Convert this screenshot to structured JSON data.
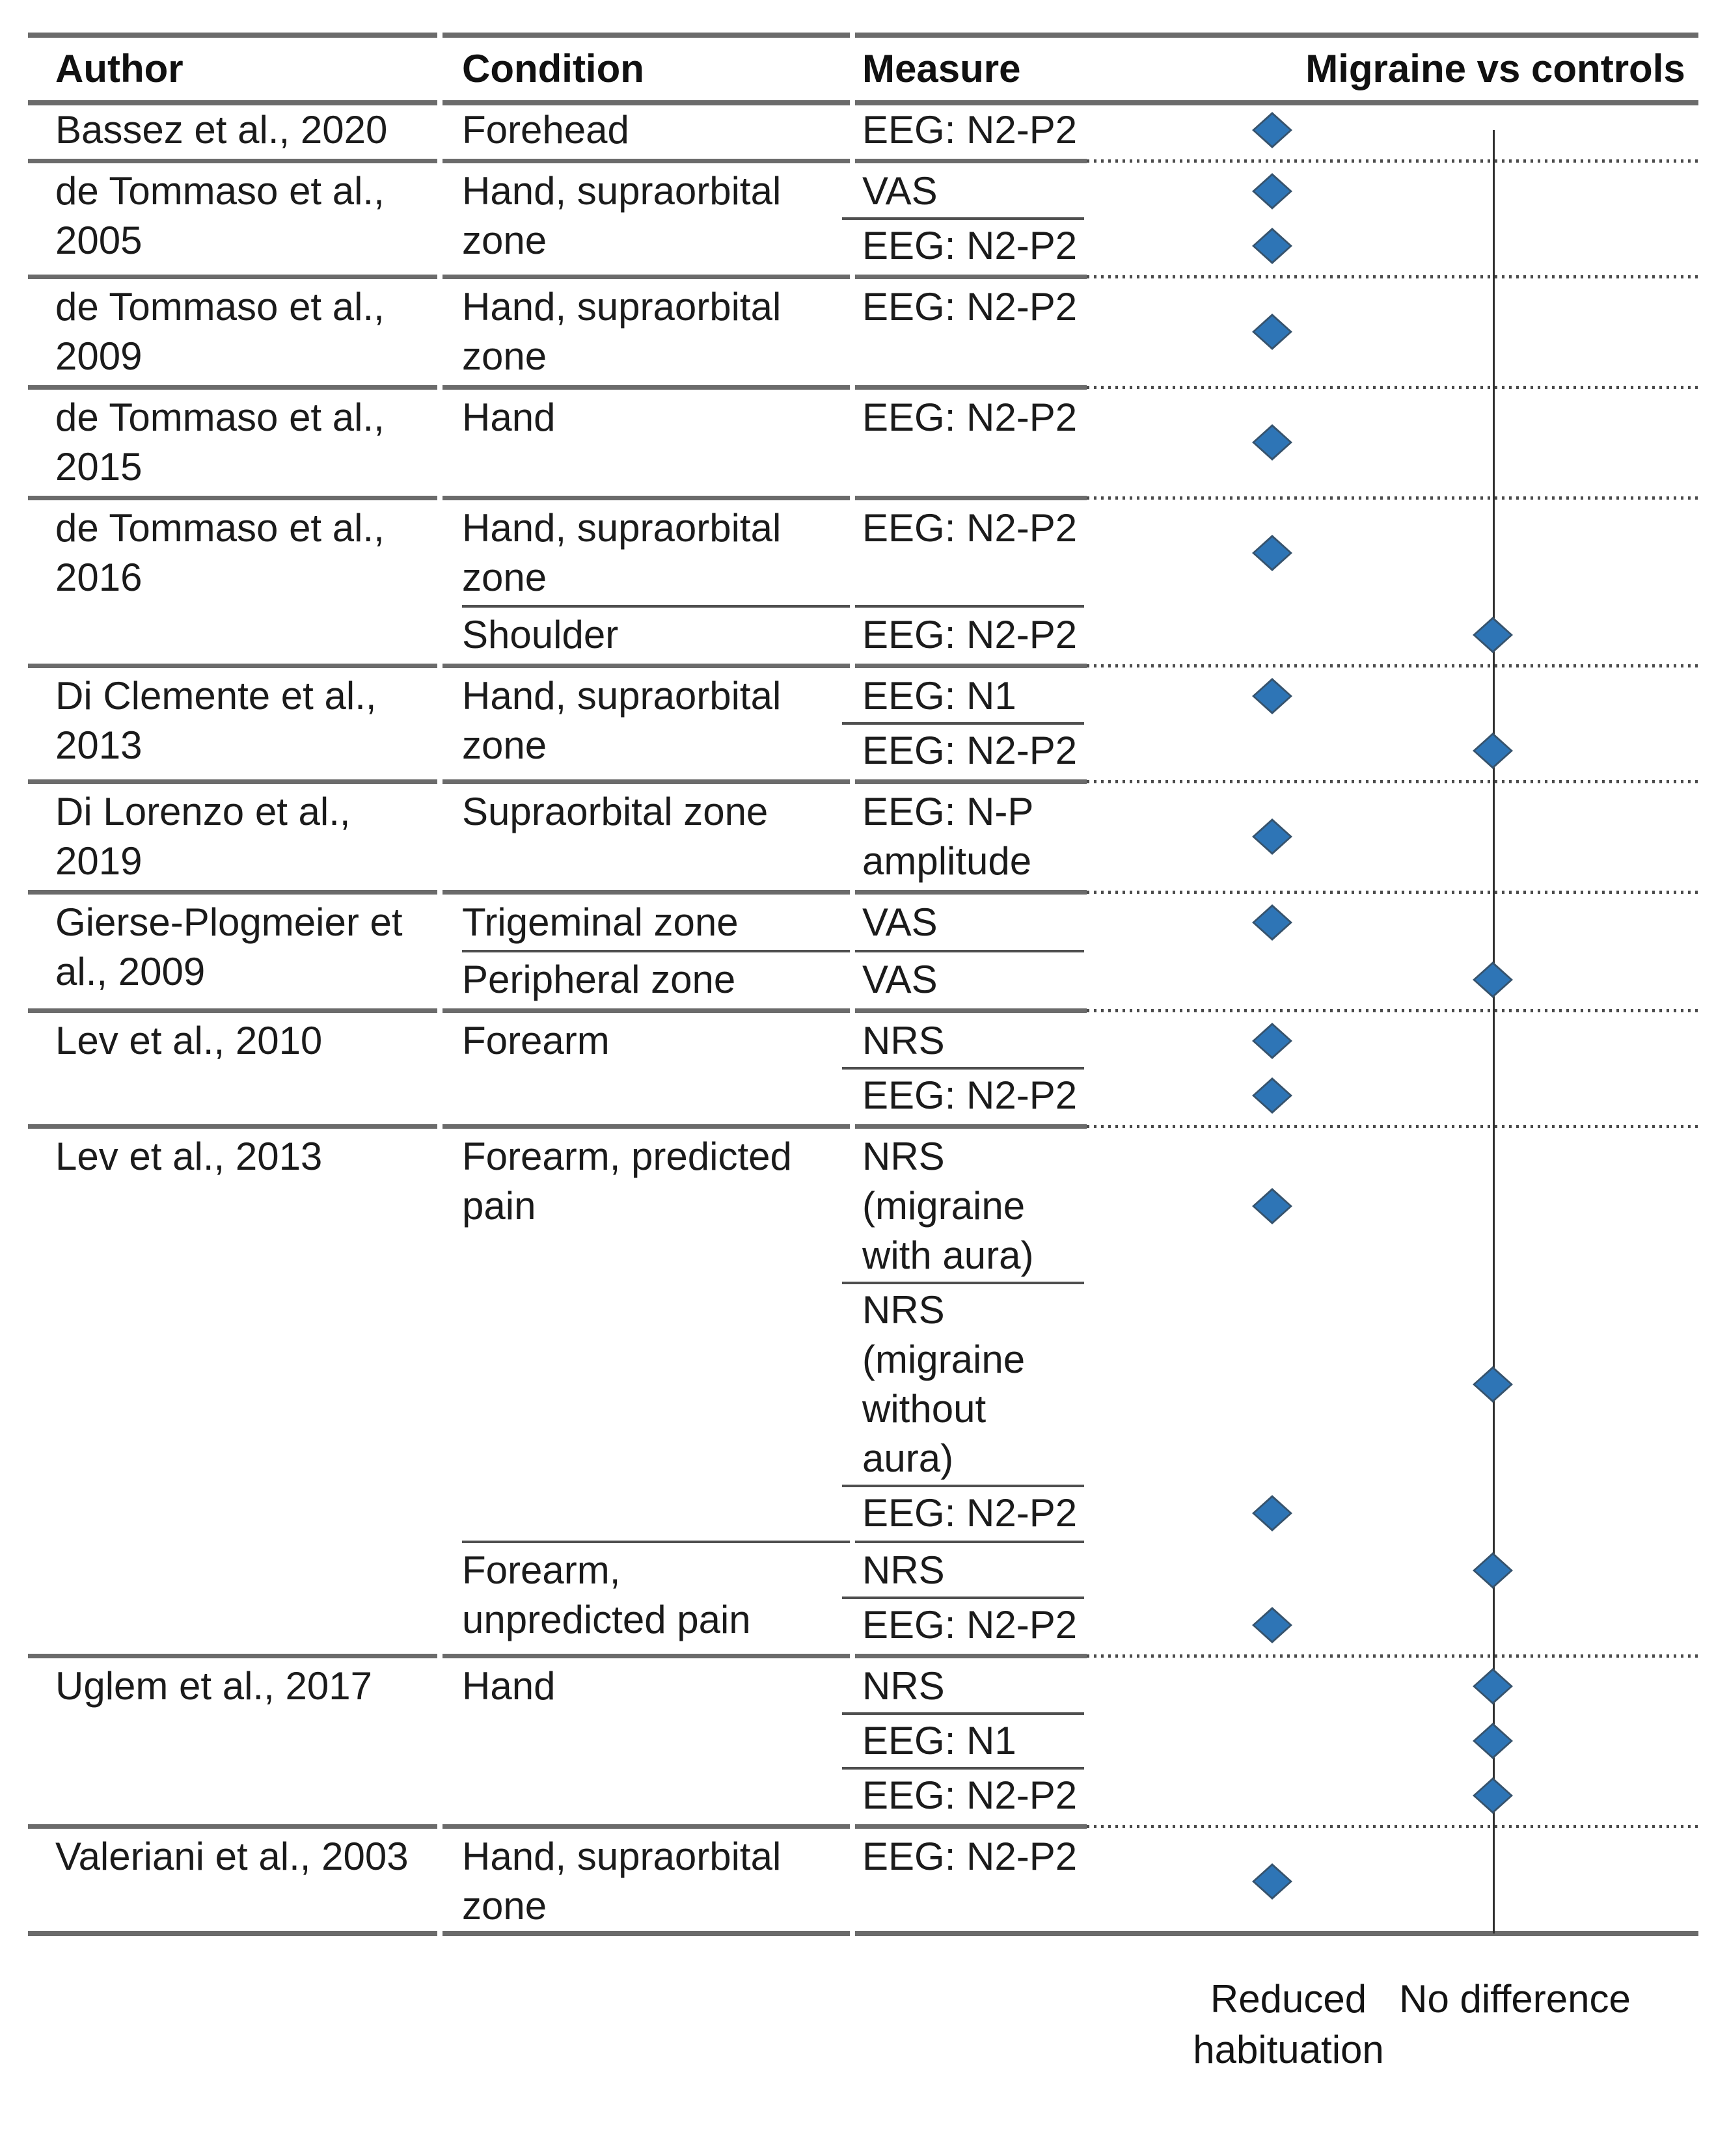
{
  "figure": {
    "marker_color": "#2E75B6",
    "marker_edge_color": "#36536d",
    "rule_color": "#6b6b6b",
    "headers": {
      "author": "Author",
      "condition": "Condition",
      "measure": "Measure",
      "comparison": "Migraine vs controls"
    },
    "outcome_labels": {
      "reduced_habituation": "Reduced habituation",
      "no_difference": "No difference"
    },
    "groups": [
      {
        "author": "Bassez et al., 2020",
        "conditions": [
          {
            "condition": "Forehead",
            "measures": [
              {
                "measure": "EEG: N2-P2",
                "result": "reduced_habituation"
              }
            ]
          }
        ]
      },
      {
        "author": "de Tommaso et al., 2005",
        "conditions": [
          {
            "condition": "Hand, supraorbital zone",
            "measures": [
              {
                "measure": "VAS",
                "result": "reduced_habituation"
              },
              {
                "measure": "EEG: N2-P2",
                "result": "reduced_habituation"
              }
            ]
          }
        ]
      },
      {
        "author": "de Tommaso et al., 2009",
        "conditions": [
          {
            "condition": "Hand, supraorbital zone",
            "measures": [
              {
                "measure": "EEG: N2-P2",
                "result": "reduced_habituation"
              }
            ]
          }
        ]
      },
      {
        "author": "de Tommaso et al., 2015",
        "conditions": [
          {
            "condition": "Hand",
            "measures": [
              {
                "measure": "EEG: N2-P2",
                "result": "reduced_habituation"
              }
            ]
          }
        ]
      },
      {
        "author": "de Tommaso et al., 2016",
        "conditions": [
          {
            "condition": "Hand, supraorbital zone",
            "measures": [
              {
                "measure": "EEG: N2-P2",
                "result": "reduced_habituation"
              }
            ]
          },
          {
            "condition": "Shoulder",
            "measures": [
              {
                "measure": "EEG: N2-P2",
                "result": "no_difference"
              }
            ]
          }
        ]
      },
      {
        "author": "Di Clemente et al., 2013",
        "conditions": [
          {
            "condition": "Hand, supraorbital zone",
            "measures": [
              {
                "measure": "EEG: N1",
                "result": "reduced_habituation"
              },
              {
                "measure": "EEG: N2-P2",
                "result": "no_difference"
              }
            ]
          }
        ]
      },
      {
        "author": "Di Lorenzo et al., 2019",
        "conditions": [
          {
            "condition": "Supraorbital zone",
            "measures": [
              {
                "measure": "EEG: N-P amplitude",
                "result": "reduced_habituation"
              }
            ]
          }
        ]
      },
      {
        "author": "Gierse-Plogmeier et al., 2009",
        "conditions": [
          {
            "condition": "Trigeminal zone",
            "measures": [
              {
                "measure": "VAS",
                "result": "reduced_habituation"
              }
            ]
          },
          {
            "condition": "Peripheral zone",
            "measures": [
              {
                "measure": "VAS",
                "result": "no_difference"
              }
            ]
          }
        ]
      },
      {
        "author": "Lev et al., 2010",
        "conditions": [
          {
            "condition": "Forearm",
            "measures": [
              {
                "measure": "NRS",
                "result": "reduced_habituation"
              },
              {
                "measure": "EEG: N2-P2",
                "result": "reduced_habituation"
              }
            ]
          }
        ]
      },
      {
        "author": "Lev et al., 2013",
        "conditions": [
          {
            "condition": "Forearm, predicted pain",
            "measures": [
              {
                "measure": "NRS (migraine with aura)",
                "result": "reduced_habituation"
              },
              {
                "measure": "NRS (migraine without aura)",
                "result": "no_difference"
              },
              {
                "measure": "EEG: N2-P2",
                "result": "reduced_habituation"
              }
            ]
          },
          {
            "condition": "Forearm, unpredicted pain",
            "measures": [
              {
                "measure": "NRS",
                "result": "no_difference"
              },
              {
                "measure": "EEG: N2-P2",
                "result": "reduced_habituation"
              }
            ]
          }
        ]
      },
      {
        "author": "Uglem et al., 2017",
        "conditions": [
          {
            "condition": "Hand",
            "measures": [
              {
                "measure": "NRS",
                "result": "no_difference"
              },
              {
                "measure": "EEG: N1",
                "result": "no_difference"
              },
              {
                "measure": "EEG: N2-P2",
                "result": "no_difference"
              }
            ]
          }
        ]
      },
      {
        "author": "Valeriani et al., 2003",
        "conditions": [
          {
            "condition": "Hand, supraorbital zone",
            "measures": [
              {
                "measure": "EEG: N2-P2",
                "result": "reduced_habituation"
              }
            ]
          }
        ]
      }
    ]
  }
}
